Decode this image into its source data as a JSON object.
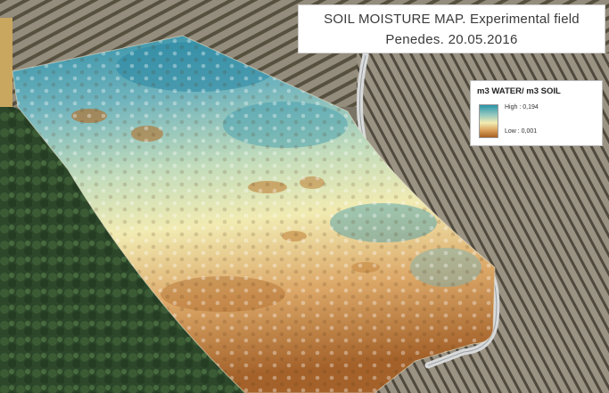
{
  "title": {
    "line1": "SOIL MOISTURE MAP. Experimental field",
    "line2": "Penedes. 20.05.2016"
  },
  "legend": {
    "title": "m3 WATER/ m3 SOIL",
    "high_label": "High : 0,194",
    "low_label": "Low : 0,001",
    "high_color": "#2a94a8",
    "mid_color": "#f2ecb2",
    "low_color": "#a55f22"
  },
  "map": {
    "layers": [
      "aerial-imagery",
      "soil-moisture-raster",
      "road",
      "vineyard-rows",
      "forest"
    ]
  },
  "colors": {
    "forest": "#2f4a2c",
    "vineyard_soil": "#8a8274",
    "road": "#d8dadb"
  }
}
